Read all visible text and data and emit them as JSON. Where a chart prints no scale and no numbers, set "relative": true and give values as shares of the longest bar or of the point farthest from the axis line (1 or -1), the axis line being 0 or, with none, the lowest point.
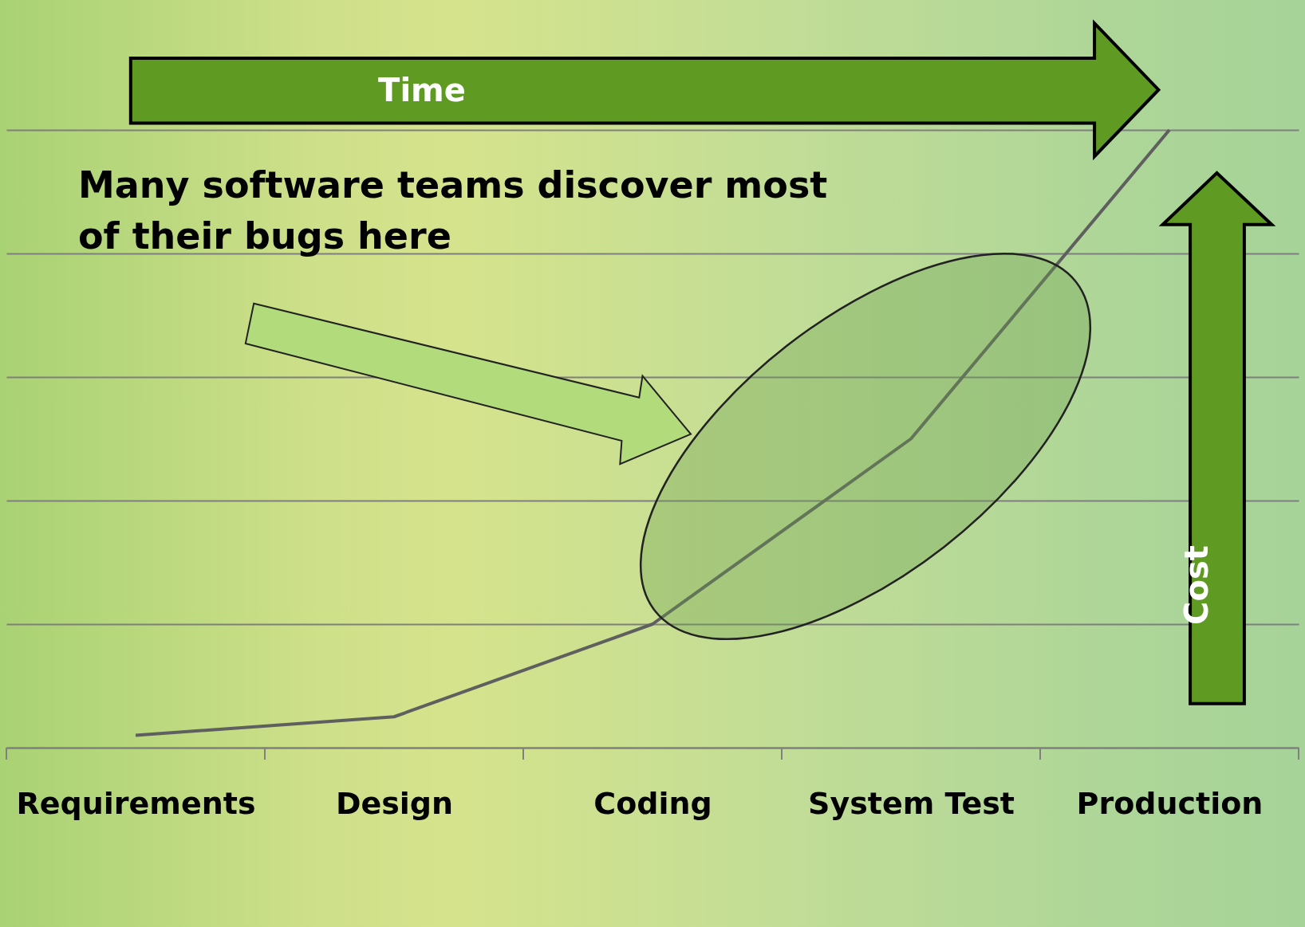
{
  "chart_data": {
    "type": "line",
    "categories": [
      "Requirements",
      "Design",
      "Coding",
      "System Test",
      "Production"
    ],
    "values": [
      0.02,
      0.05,
      0.2,
      0.5,
      1
    ],
    "relative": true,
    "color": "#5f5f5f",
    "grid": "y",
    "marker": "none",
    "line_style": "solid",
    "annotations": [
      "Time",
      "Cost",
      "Many software teams discover most of their bugs here"
    ]
  }
}
